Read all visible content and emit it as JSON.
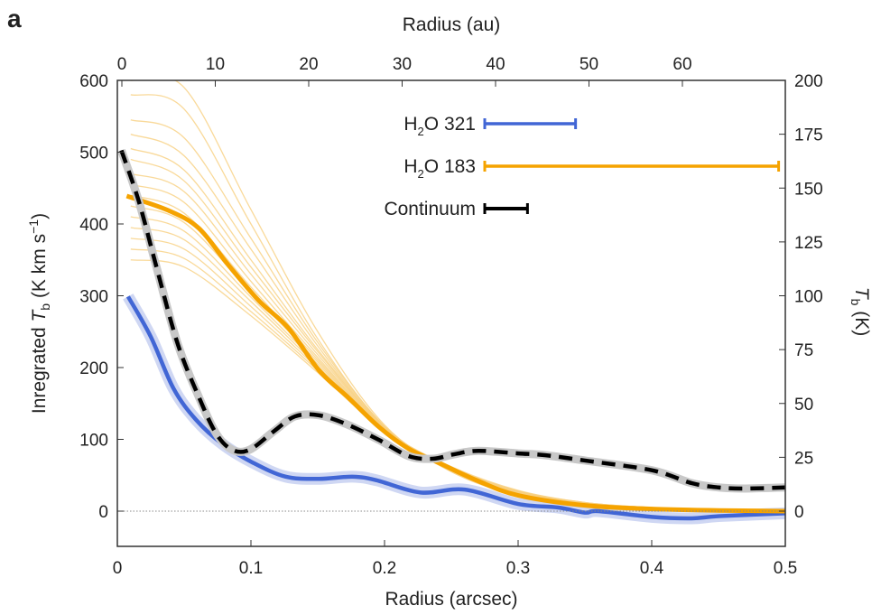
{
  "panel_label": "a",
  "chart_data": {
    "type": "line",
    "xlabel": "Radius (arcsec)",
    "xlabel_top": "Radius (au)",
    "ylabel_left": {
      "pre": "Inregrated ",
      "T": "T",
      "sub": "b",
      "post": " (K km s",
      "sup": "−1",
      "end": ")"
    },
    "ylabel_right": {
      "T": "T",
      "sub": "b",
      "post": " (K)"
    },
    "xlim": [
      0,
      0.5
    ],
    "ylim_left": [
      -50,
      600
    ],
    "ylim_right": [
      -16.7,
      200
    ],
    "x_ticks": [
      "0",
      "0.1",
      "0.2",
      "0.3",
      "0.4",
      "0.5"
    ],
    "x_top_ticks": [
      "0",
      "10",
      "20",
      "30",
      "40",
      "50",
      "60"
    ],
    "au_per_arcsec": 143,
    "y_left_ticks": [
      "0",
      "100",
      "200",
      "300",
      "400",
      "500",
      "600"
    ],
    "y_right_ticks": [
      "0",
      "25",
      "50",
      "75",
      "100",
      "125",
      "150",
      "175",
      "200"
    ],
    "zero_line": true,
    "colors": {
      "h2o321": "#4166d5",
      "h2o183": "#f5a300",
      "continuum": "#000000",
      "models": "#f8cf80"
    },
    "series": [
      {
        "name": "H2O 321",
        "label_main": "H",
        "label_sub": "2",
        "label_rest": "O 321",
        "axis": "left",
        "x": [
          0.008,
          0.025,
          0.042,
          0.059,
          0.079,
          0.101,
          0.126,
          0.151,
          0.176,
          0.194,
          0.227,
          0.26,
          0.3,
          0.33,
          0.35,
          0.36,
          0.4,
          0.43,
          0.45,
          0.5
        ],
        "y": [
          299,
          243,
          171,
          127,
          93,
          68,
          48,
          45,
          48,
          43,
          26,
          30,
          10,
          5,
          -2,
          0,
          -8,
          -10,
          -7,
          -3
        ],
        "beam_arcsec": 0.068
      },
      {
        "name": "H2O 183",
        "label_main": "H",
        "label_sub": "2",
        "label_rest": "O 183",
        "axis": "left",
        "x": [
          0.007,
          0.038,
          0.061,
          0.083,
          0.106,
          0.128,
          0.151,
          0.173,
          0.196,
          0.218,
          0.241,
          0.27,
          0.3,
          0.35,
          0.4,
          0.45,
          0.5
        ],
        "y": [
          439,
          419,
          394,
          343,
          293,
          255,
          196,
          158,
          117,
          87,
          67,
          42,
          22,
          8,
          3,
          1,
          0
        ],
        "beam_arcsec": 0.22
      },
      {
        "name": "Continuum",
        "label_main": "Continuum",
        "label_sub": "",
        "label_rest": "",
        "axis": "right",
        "x": [
          0.003,
          0.016,
          0.029,
          0.045,
          0.061,
          0.074,
          0.086,
          0.099,
          0.117,
          0.133,
          0.151,
          0.173,
          0.196,
          0.218,
          0.236,
          0.252,
          0.27,
          0.3,
          0.32,
          0.35,
          0.4,
          0.43,
          0.45,
          0.47,
          0.5
        ],
        "y": [
          167.5,
          144,
          114,
          78,
          53,
          36,
          28.5,
          28.5,
          37,
          44,
          44.5,
          40,
          33,
          25.6,
          24.3,
          26.4,
          28,
          26.8,
          26,
          23.5,
          19,
          13,
          11,
          10.5,
          11
        ],
        "beam_arcsec": 0.032
      }
    ],
    "model_curves": {
      "x": [
        0.01,
        0.05,
        0.1,
        0.15,
        0.2,
        0.25,
        0.3,
        0.35,
        0.4,
        0.45,
        0.5
      ],
      "y": [
        [
          600,
          590,
          420,
          250,
          120,
          55,
          22,
          9,
          4,
          1,
          0
        ],
        [
          580,
          560,
          400,
          240,
          118,
          55,
          22,
          9,
          4,
          1,
          0
        ],
        [
          545,
          520,
          380,
          235,
          118,
          56,
          23,
          9,
          4,
          1,
          0
        ],
        [
          525,
          495,
          365,
          230,
          117,
          56,
          23,
          9,
          4,
          1,
          0
        ],
        [
          505,
          475,
          350,
          225,
          117,
          57,
          24,
          10,
          4,
          1,
          0
        ],
        [
          490,
          460,
          340,
          222,
          116,
          57,
          24,
          10,
          4,
          1,
          0
        ],
        [
          470,
          445,
          330,
          218,
          116,
          58,
          25,
          10,
          4,
          1,
          0
        ],
        [
          455,
          430,
          320,
          214,
          115,
          58,
          25,
          10,
          4,
          1,
          0
        ],
        [
          440,
          415,
          312,
          211,
          115,
          59,
          26,
          11,
          4,
          1,
          0
        ],
        [
          425,
          402,
          305,
          208,
          114,
          59,
          26,
          11,
          5,
          1,
          0
        ],
        [
          410,
          390,
          298,
          205,
          114,
          60,
          27,
          11,
          5,
          1,
          0
        ],
        [
          395,
          378,
          292,
          202,
          113,
          60,
          27,
          11,
          5,
          2,
          0
        ],
        [
          380,
          365,
          285,
          199,
          113,
          61,
          28,
          12,
          5,
          2,
          0
        ],
        [
          365,
          352,
          278,
          196,
          112,
          61,
          28,
          12,
          5,
          2,
          0
        ],
        [
          350,
          340,
          272,
          193,
          112,
          62,
          29,
          12,
          5,
          2,
          0
        ]
      ]
    }
  }
}
